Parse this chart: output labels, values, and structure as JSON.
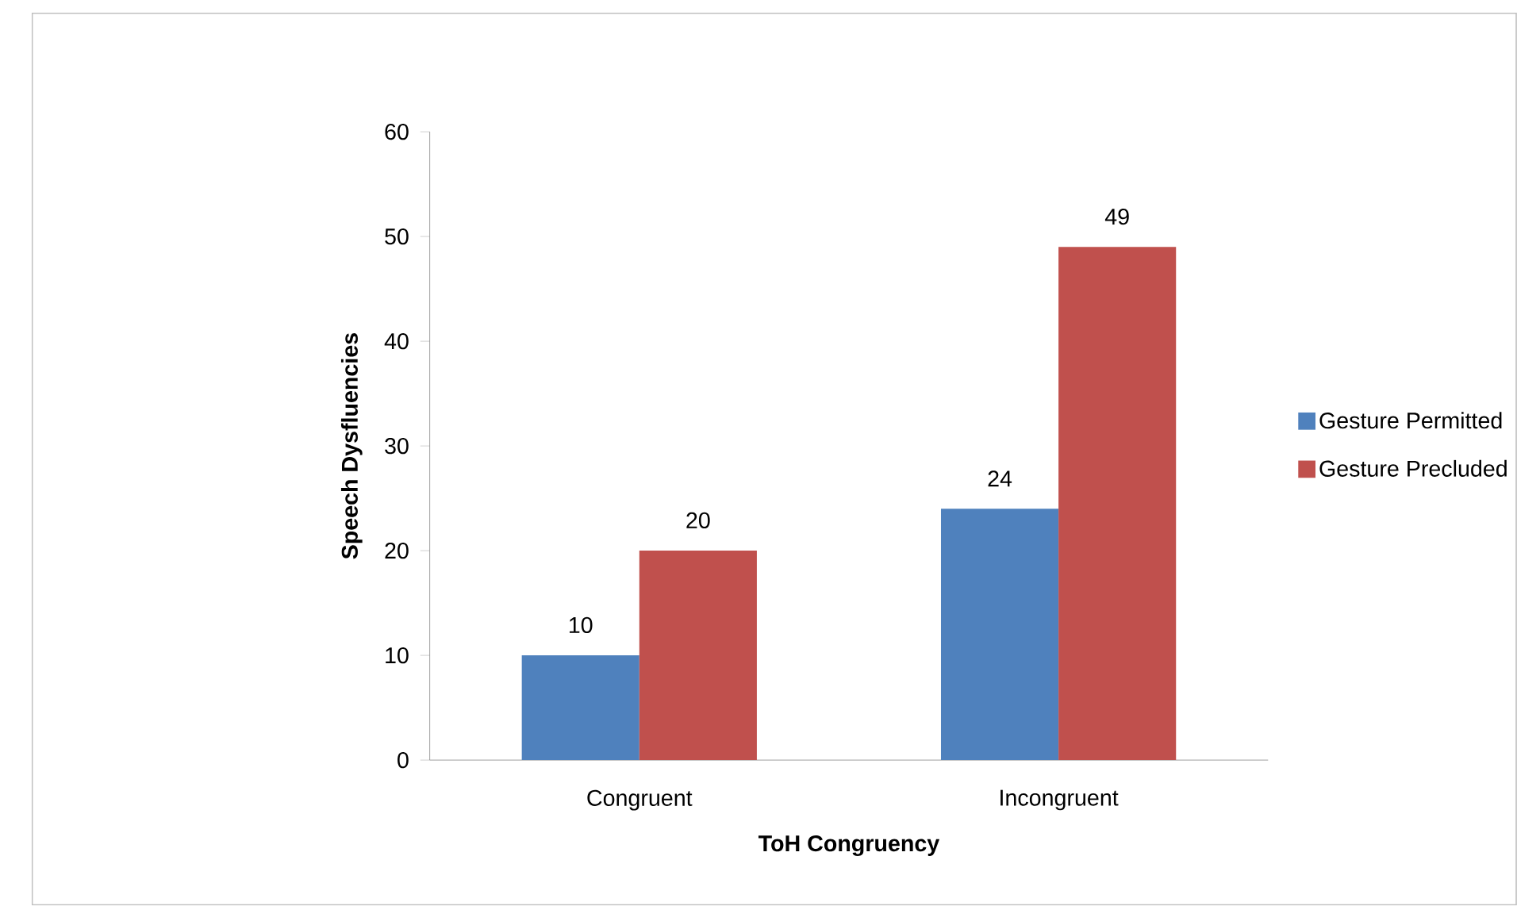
{
  "chart_data": {
    "type": "bar",
    "xlabel": "ToH Congruency",
    "ylabel": "Speech Dysfluencies",
    "categories": [
      "Congruent",
      "Incongruent"
    ],
    "series": [
      {
        "name": "Gesture Permitted",
        "color": "#4f81bd",
        "values": [
          10,
          24
        ]
      },
      {
        "name": "Gesture Precluded",
        "color": "#c0504d",
        "values": [
          20,
          49
        ]
      }
    ],
    "ylim": [
      0,
      60
    ],
    "yticks": [
      0,
      10,
      20,
      30,
      40,
      50,
      60
    ],
    "grid": false,
    "legend": "right",
    "data_labels": true
  }
}
